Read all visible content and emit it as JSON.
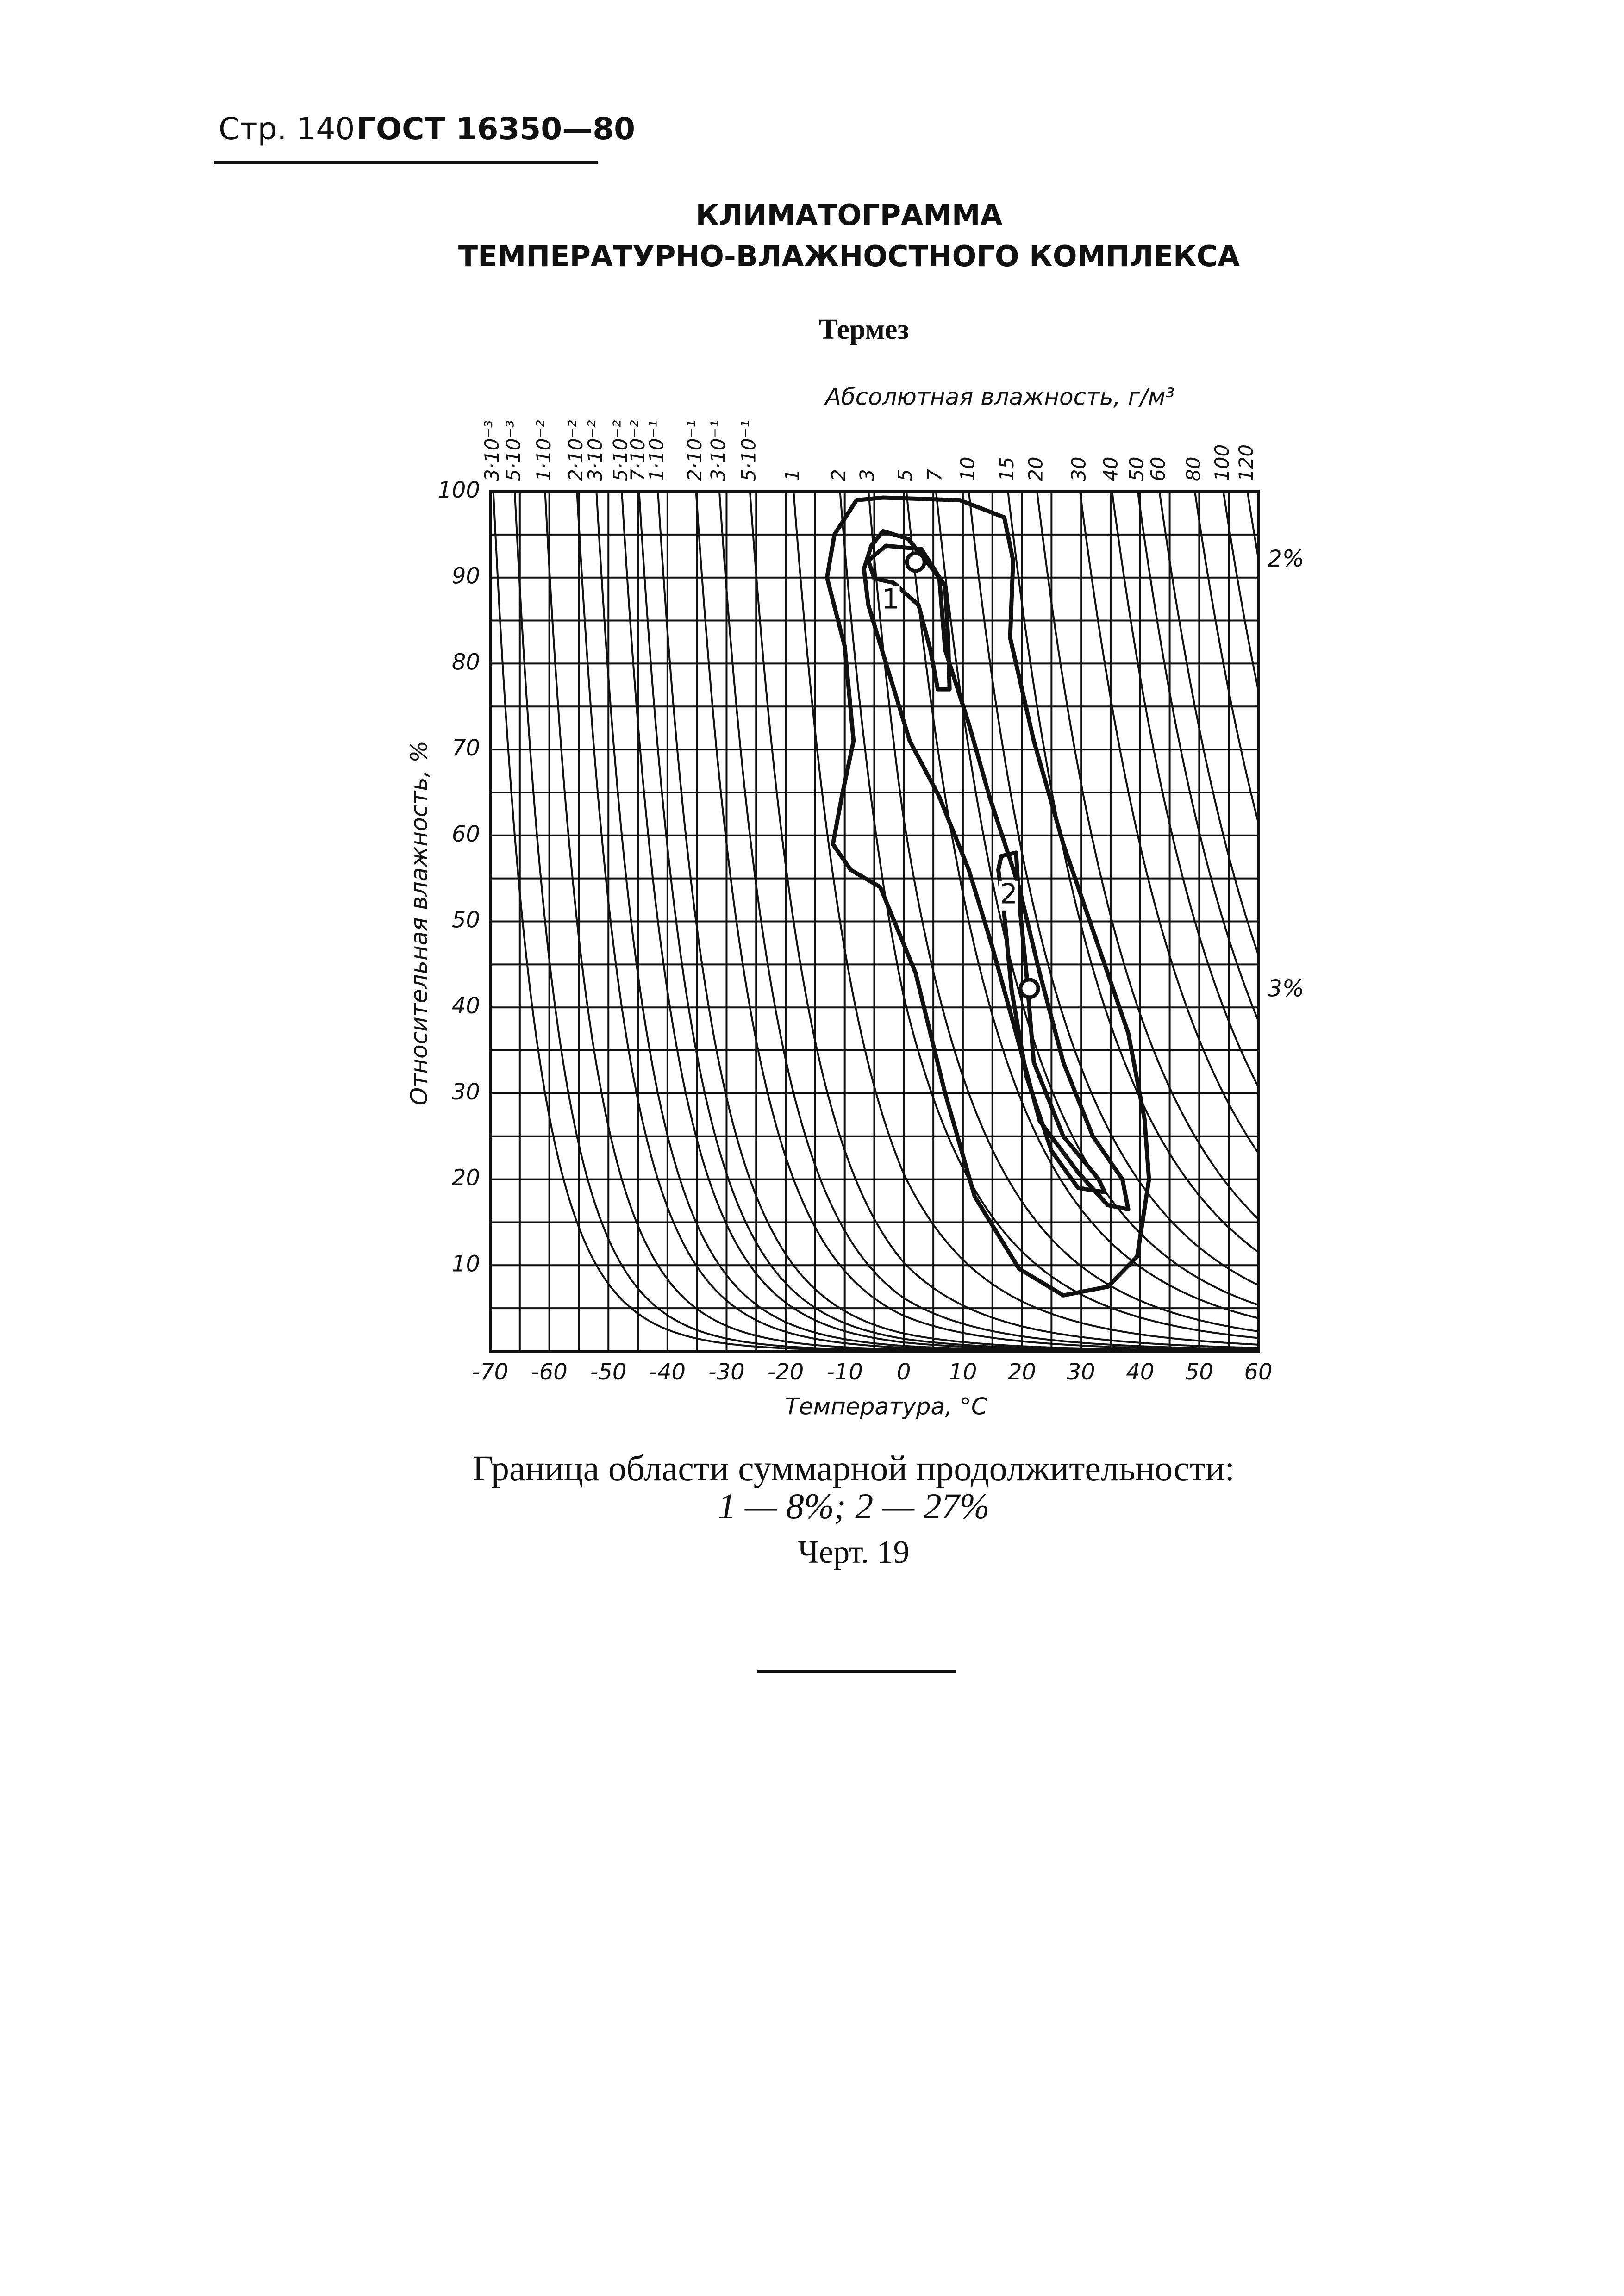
{
  "header": {
    "page": "Стр. 140",
    "standard": "ГОСТ 16350—80"
  },
  "title": [
    "КЛИМАТОГРАММА",
    "ТЕМПЕРАТУРНО-ВЛАЖНОСТНОГО КОМПЛЕКСА"
  ],
  "subtitle": "Термез",
  "chart_data": {
    "type": "climatogram",
    "top_label": "Абсолютная влажность, г/м³",
    "x_label": "Температура, °С",
    "y_label": "Относительная влажность, %",
    "xlim": [
      -70,
      60
    ],
    "xticks": [
      -70,
      -60,
      -50,
      -40,
      -30,
      -20,
      -10,
      0,
      10,
      20,
      30,
      40,
      50,
      60
    ],
    "x_minor_ticks": [
      -65,
      -55,
      -45,
      -35,
      -25,
      -15,
      -5,
      5,
      15,
      25,
      35,
      45,
      55
    ],
    "ylim": [
      0,
      100
    ],
    "yticks": [
      10,
      20,
      30,
      40,
      50,
      60,
      70,
      80,
      90,
      100
    ],
    "y_minor_ticks": [
      5,
      15,
      25,
      35,
      45,
      55,
      65,
      75,
      85,
      95
    ],
    "grid": true,
    "abs_humidity": [
      {
        "value": 0.003,
        "label": "3·10⁻³"
      },
      {
        "value": 0.005,
        "label": "5·10⁻³"
      },
      {
        "value": 0.01,
        "label": "1·10⁻²"
      },
      {
        "value": 0.02,
        "label": "2·10⁻²"
      },
      {
        "value": 0.03,
        "label": "3·10⁻²"
      },
      {
        "value": 0.05,
        "label": "5·10⁻²"
      },
      {
        "value": 0.07,
        "label": "7·10⁻²"
      },
      {
        "value": 0.1,
        "label": "1·10⁻¹"
      },
      {
        "value": 0.2,
        "label": "2·10⁻¹"
      },
      {
        "value": 0.3,
        "label": "3·10⁻¹"
      },
      {
        "value": 0.5,
        "label": "5·10⁻¹"
      },
      1,
      2,
      3,
      5,
      7,
      10,
      15,
      20,
      30,
      40,
      50,
      60,
      80,
      100,
      120
    ],
    "contours": [
      {
        "x": [
          -3.5,
          9.5,
          17,
          18.5,
          18,
          22,
          27,
          33,
          38,
          40.75,
          41.5,
          39.5,
          34.5,
          27,
          19.5,
          12,
          7,
          2,
          -4,
          -9,
          -12,
          -10.5,
          -8.5,
          -10,
          -13,
          -11.75,
          -8
        ],
        "y": [
          99.3,
          99,
          97,
          92,
          83,
          71,
          59,
          47,
          37,
          27,
          20,
          11,
          7.5,
          6.5,
          9.6,
          18,
          30,
          44,
          54,
          56,
          59,
          64.5,
          71,
          82,
          90,
          95,
          99
        ]
      },
      {
        "x": [
          -5.5,
          -3.5,
          0.75,
          6,
          7,
          11,
          14.5,
          19.5,
          23,
          27,
          32,
          37,
          38,
          34.5,
          29.5,
          23,
          19,
          15,
          11,
          6,
          1,
          -3,
          -6,
          -6.75
        ],
        "y": [
          93.7,
          95.4,
          94.5,
          90,
          81.6,
          73,
          64.5,
          54,
          44,
          33.6,
          25,
          20,
          16.5,
          17,
          20.8,
          26.8,
          37,
          47,
          56,
          64.5,
          71,
          80,
          86.8,
          91
        ]
      },
      {
        "x": [
          -6,
          -3,
          3,
          7,
          7.5,
          7.75,
          5.75,
          4.5,
          2.5,
          -1.75,
          -5
        ],
        "y": [
          92,
          93.7,
          93.3,
          89,
          83,
          77,
          77,
          81.6,
          86.8,
          89.4,
          89.9
        ]
      },
      {
        "x": [
          16.5,
          19,
          19.5,
          20.75,
          22,
          27,
          33,
          34,
          29.5,
          25,
          20.75,
          18.25,
          17,
          16
        ],
        "y": [
          57.6,
          58,
          52.5,
          44,
          33.6,
          25,
          20,
          18.5,
          19,
          23.3,
          32,
          42,
          50.8,
          56
        ]
      }
    ],
    "contour_labels": [
      {
        "text": "1",
        "x": -2.25,
        "y": 87.3
      },
      {
        "text": "2",
        "x": 17.75,
        "y": 53
      }
    ],
    "points": {
      "x": [
        2,
        21.25
      ],
      "y": [
        91.8,
        42.2
      ]
    },
    "annotations": [
      {
        "text": "2%",
        "y": 92
      },
      {
        "text": "3%",
        "y": 42
      }
    ]
  },
  "caption": [
    "Граница области суммарной продолжительности:",
    "1 — 8%; 2 — 27%",
    "Черт. 19"
  ]
}
